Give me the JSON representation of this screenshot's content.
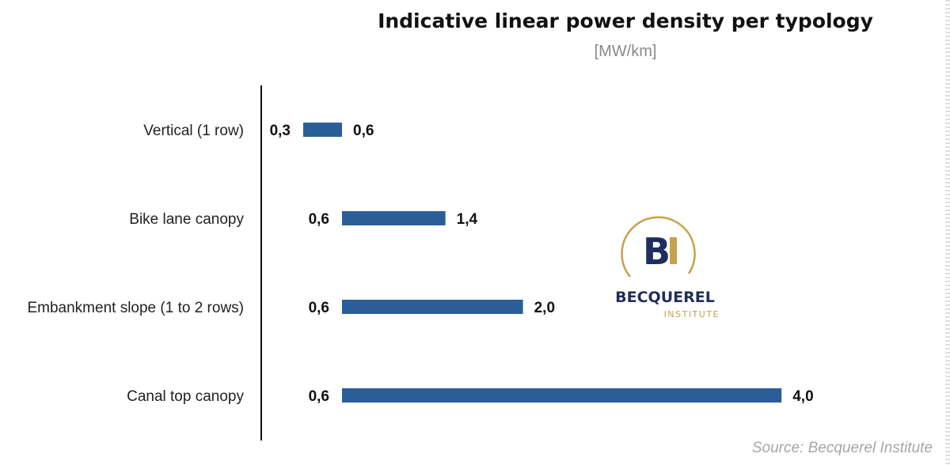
{
  "chart_data": {
    "type": "bar",
    "subtype": "floating-range",
    "title": "Indicative linear power density per typology",
    "subtitle": "[MW/km]",
    "categories": [
      "Vertical (1 row)",
      "Bike lane canopy",
      "Embankment slope (1 to 2 rows)",
      "Canal top canopy"
    ],
    "series": [
      {
        "min": [
          0.3,
          0.6,
          0.6,
          0.6
        ],
        "max": [
          0.6,
          1.4,
          2.0,
          4.0
        ],
        "min_labels": [
          "0,3",
          "0,6",
          "0,6",
          "0,6"
        ],
        "max_labels": [
          "0,6",
          "1,4",
          "2,0",
          "4,0"
        ],
        "color": "#2b5e99"
      }
    ],
    "xlim": [
      0,
      4.4
    ],
    "grid": false,
    "legend": "none"
  },
  "source": "Source: Becquerel Institute",
  "logo": {
    "icon": "becquerel-bi-logo",
    "monogram": "BI",
    "name": "BECQUEREL",
    "tagline": "INSTITUTE",
    "navy": "#1f2f5c",
    "gold": "#c9a04a"
  }
}
